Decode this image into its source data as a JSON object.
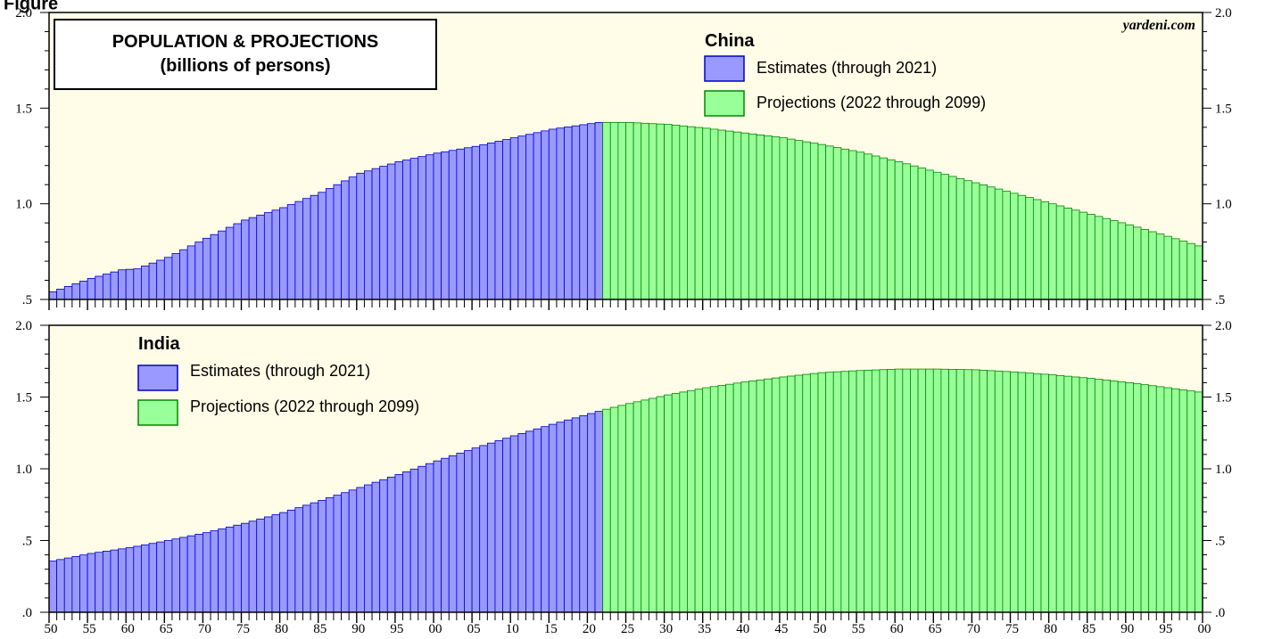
{
  "figure_label": "Figure",
  "title_line1": "POPULATION & PROJECTIONS",
  "title_line2": "(billions of persons)",
  "source": "yardeni.com",
  "colors": {
    "background": "#fffde7",
    "estimates_fill": "#9999ff",
    "estimates_stroke": "#0000cc",
    "projections_fill": "#99ff99",
    "projections_stroke": "#008800"
  },
  "x_tick_labels": [
    "50",
    "55",
    "60",
    "65",
    "70",
    "75",
    "80",
    "85",
    "90",
    "95",
    "00",
    "05",
    "10",
    "15",
    "20",
    "25",
    "30",
    "35",
    "40",
    "45",
    "50",
    "55",
    "60",
    "65",
    "70",
    "75",
    "80",
    "85",
    "90",
    "95",
    "00"
  ],
  "chart_data": [
    {
      "type": "bar",
      "title": "China",
      "ylim": [
        0.5,
        2.0
      ],
      "yticks": [
        ".5",
        "1.0",
        "1.5",
        "2.0"
      ],
      "x_range": [
        1950,
        2099
      ],
      "series": [
        {
          "name": "Estimates (through 2021)",
          "anchors": [
            [
              1950,
              0.54
            ],
            [
              1955,
              0.61
            ],
            [
              1959,
              0.655
            ],
            [
              1961,
              0.66
            ],
            [
              1965,
              0.72
            ],
            [
              1970,
              0.82
            ],
            [
              1975,
              0.915
            ],
            [
              1980,
              0.98
            ],
            [
              1985,
              1.06
            ],
            [
              1990,
              1.16
            ],
            [
              1995,
              1.22
            ],
            [
              2000,
              1.265
            ],
            [
              2005,
              1.3
            ],
            [
              2010,
              1.345
            ],
            [
              2015,
              1.39
            ],
            [
              2021,
              1.425
            ]
          ]
        },
        {
          "name": "Projections (2022 through 2099)",
          "anchors": [
            [
              2022,
              1.425
            ],
            [
              2025,
              1.425
            ],
            [
              2030,
              1.415
            ],
            [
              2035,
              1.395
            ],
            [
              2040,
              1.37
            ],
            [
              2045,
              1.345
            ],
            [
              2050,
              1.31
            ],
            [
              2055,
              1.27
            ],
            [
              2060,
              1.22
            ],
            [
              2065,
              1.165
            ],
            [
              2070,
              1.11
            ],
            [
              2075,
              1.055
            ],
            [
              2080,
              1.0
            ],
            [
              2085,
              0.945
            ],
            [
              2090,
              0.89
            ],
            [
              2095,
              0.83
            ],
            [
              2099,
              0.78
            ]
          ]
        }
      ]
    },
    {
      "type": "bar",
      "title": "India",
      "ylim": [
        0,
        2.0
      ],
      "yticks": [
        ".0",
        ".5",
        "1.0",
        "1.5",
        "2.0"
      ],
      "x_range": [
        1950,
        2099
      ],
      "series": [
        {
          "name": "Estimates (through 2021)",
          "anchors": [
            [
              1950,
              0.357
            ],
            [
              1955,
              0.41
            ],
            [
              1960,
              0.45
            ],
            [
              1965,
              0.5
            ],
            [
              1970,
              0.555
            ],
            [
              1975,
              0.62
            ],
            [
              1980,
              0.695
            ],
            [
              1985,
              0.78
            ],
            [
              1990,
              0.87
            ],
            [
              1995,
              0.96
            ],
            [
              2000,
              1.055
            ],
            [
              2005,
              1.145
            ],
            [
              2010,
              1.23
            ],
            [
              2015,
              1.31
            ],
            [
              2021,
              1.4
            ]
          ]
        },
        {
          "name": "Projections (2022 through 2099)",
          "anchors": [
            [
              2022,
              1.415
            ],
            [
              2025,
              1.455
            ],
            [
              2030,
              1.515
            ],
            [
              2035,
              1.565
            ],
            [
              2040,
              1.605
            ],
            [
              2045,
              1.64
            ],
            [
              2050,
              1.67
            ],
            [
              2055,
              1.685
            ],
            [
              2060,
              1.695
            ],
            [
              2065,
              1.695
            ],
            [
              2070,
              1.69
            ],
            [
              2075,
              1.675
            ],
            [
              2080,
              1.655
            ],
            [
              2085,
              1.63
            ],
            [
              2090,
              1.6
            ],
            [
              2095,
              1.565
            ],
            [
              2099,
              1.535
            ]
          ]
        }
      ]
    }
  ]
}
